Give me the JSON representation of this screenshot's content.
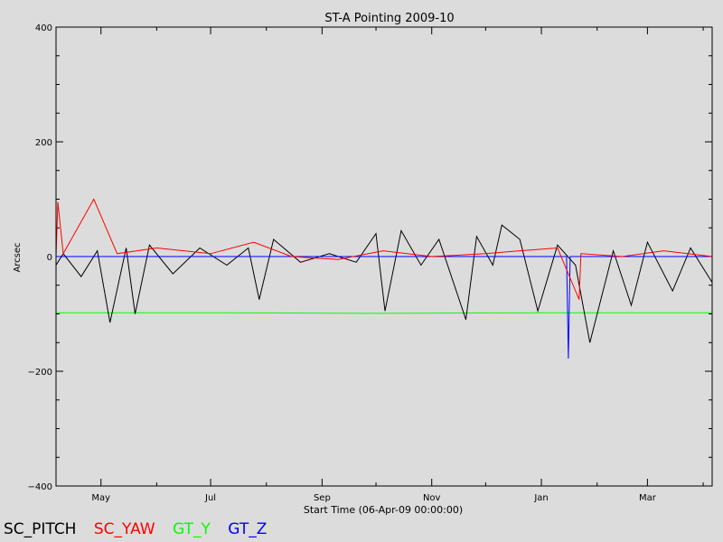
{
  "chart_data": {
    "type": "line",
    "title": "ST-A Pointing 2009-10",
    "xlabel": "Start Time (06-Apr-09 00:00:00)",
    "ylabel": "Arcsec",
    "ylim": [
      -400,
      400
    ],
    "xlim": [
      "2009-04-06",
      "2010-04-06"
    ],
    "yticks": [
      400,
      200,
      0,
      -200,
      -400
    ],
    "yticklabels": [
      "400",
      "200",
      "0",
      "−200",
      "−400"
    ],
    "xticks": [
      {
        "label": "May",
        "date": "2009-05-01"
      },
      {
        "label": "Jul",
        "date": "2009-07-01"
      },
      {
        "label": "Sep",
        "date": "2009-09-01"
      },
      {
        "label": "Nov",
        "date": "2009-11-01"
      },
      {
        "label": "Jan",
        "date": "2010-01-01"
      },
      {
        "label": "Mar",
        "date": "2010-03-01"
      }
    ],
    "series": [
      {
        "name": "SC_PITCH",
        "color": "#000000",
        "x": [
          "2009-04-06",
          "2009-04-10",
          "2009-04-20",
          "2009-04-29",
          "2009-05-06",
          "2009-05-15",
          "2009-05-20",
          "2009-05-28",
          "2009-06-10",
          "2009-06-25",
          "2009-07-10",
          "2009-07-22",
          "2009-07-28",
          "2009-08-05",
          "2009-08-20",
          "2009-09-05",
          "2009-09-20",
          "2009-10-01",
          "2009-10-06",
          "2009-10-15",
          "2009-10-26",
          "2009-11-05",
          "2009-11-20",
          "2009-11-26",
          "2009-12-05",
          "2009-12-10",
          "2009-12-20",
          "2009-12-30",
          "2010-01-10",
          "2010-01-20",
          "2010-01-28",
          "2010-02-10",
          "2010-02-20",
          "2010-03-01",
          "2010-03-15",
          "2010-03-25",
          "2010-04-06"
        ],
        "y": [
          -15,
          5,
          -35,
          10,
          -115,
          15,
          -100,
          20,
          -30,
          15,
          -15,
          15,
          -75,
          30,
          -10,
          5,
          -10,
          40,
          -95,
          45,
          -15,
          30,
          -110,
          35,
          -15,
          55,
          30,
          -95,
          20,
          -15,
          -150,
          10,
          -85,
          25,
          -60,
          15,
          -45
        ]
      },
      {
        "name": "SC_YAW",
        "color": "#ff0000",
        "x": [
          "2009-04-06",
          "2009-04-07",
          "2009-04-10",
          "2009-04-27",
          "2009-05-10",
          "2009-06-01",
          "2009-07-01",
          "2009-07-25",
          "2009-08-15",
          "2009-09-10",
          "2009-10-05",
          "2009-11-01",
          "2009-12-01",
          "2009-12-20",
          "2010-01-10",
          "2010-01-22",
          "2010-01-23",
          "2010-02-15",
          "2010-03-10",
          "2010-04-06"
        ],
        "y": [
          0,
          95,
          5,
          100,
          5,
          15,
          5,
          25,
          0,
          -5,
          10,
          0,
          5,
          10,
          15,
          -75,
          5,
          0,
          10,
          0
        ]
      },
      {
        "name": "GT_Y",
        "color": "#00ff00",
        "x": [
          "2009-04-06",
          "2009-07-01",
          "2009-10-01",
          "2010-01-01",
          "2010-04-06"
        ],
        "y": [
          -98,
          -98,
          -99,
          -98,
          -98
        ]
      },
      {
        "name": "GT_Z",
        "color": "#0000ff",
        "x": [
          "2009-04-06",
          "2010-01-15",
          "2010-01-16",
          "2010-01-17",
          "2010-04-06"
        ],
        "y": [
          0,
          0,
          -178,
          0,
          0
        ]
      }
    ]
  }
}
